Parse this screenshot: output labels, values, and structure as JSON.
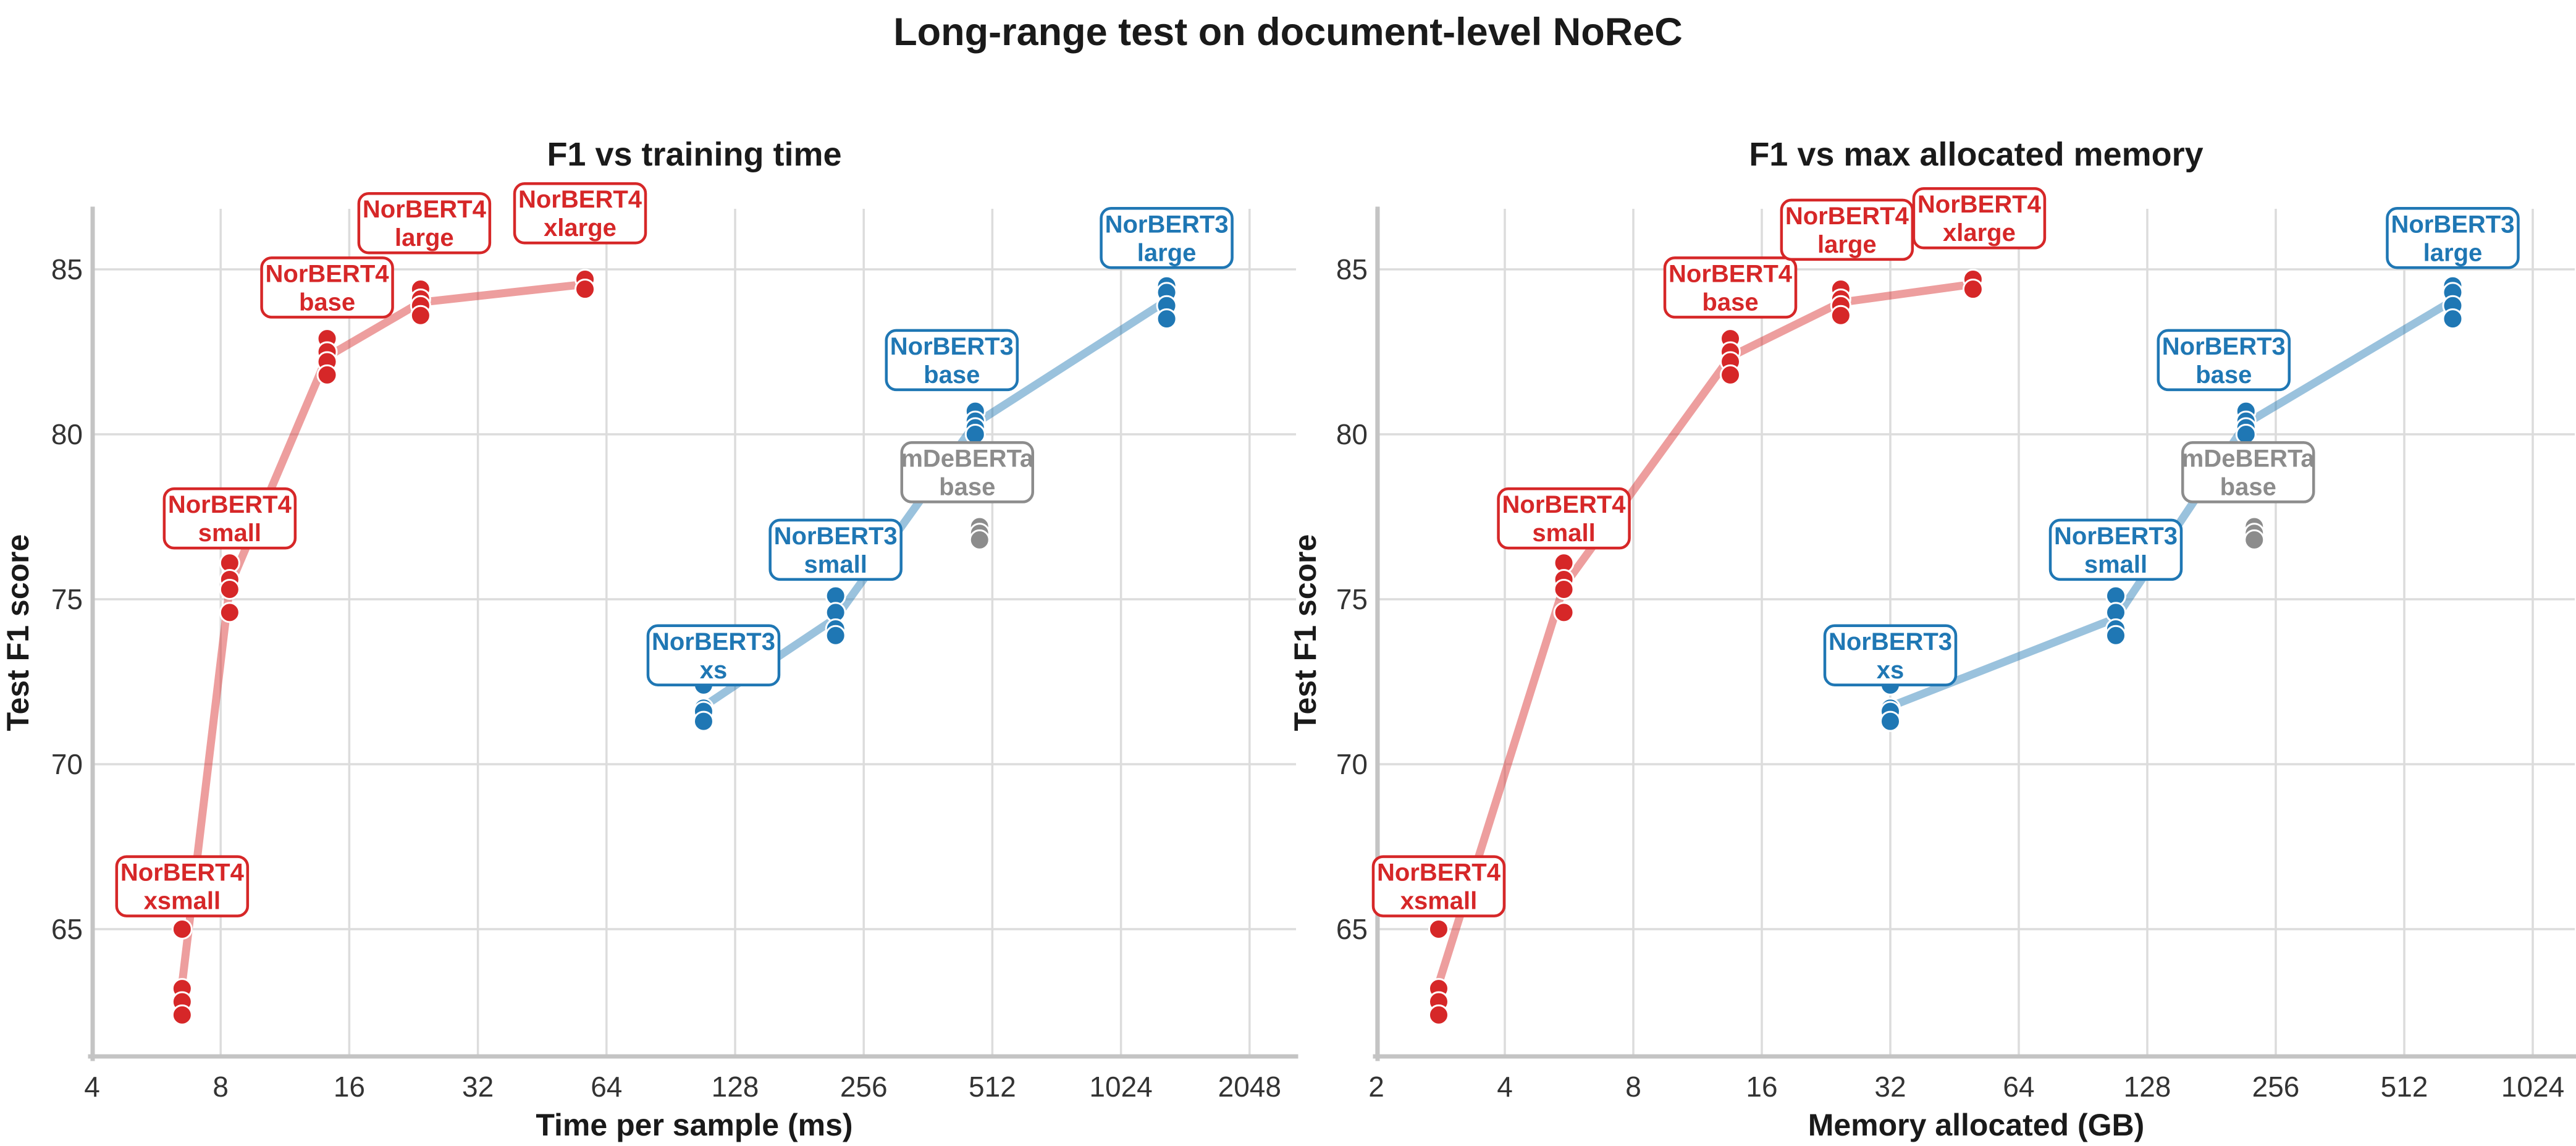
{
  "page": {
    "title": "Long-range test on document-level NoReC"
  },
  "colors": {
    "norbert4": "#d62728",
    "norbert3": "#1f77b4",
    "mdeberta": "#8c8c8c",
    "grid": "#dcdcdc",
    "spine": "#c4c4c4",
    "tick_text": "#333333",
    "title_text": "#1a1a1a"
  },
  "chart_data": [
    {
      "type": "scatter",
      "title": "F1 vs training time",
      "xlabel": "Time per sample (ms)",
      "ylabel": "Test F1 score",
      "xscale": "log2",
      "grid": true,
      "legend": "none",
      "xticks": [
        4,
        8,
        16,
        32,
        64,
        128,
        256,
        512,
        1024,
        2048
      ],
      "yticks": [
        65,
        70,
        75,
        80,
        85
      ],
      "xlim": [
        3.9,
        2300
      ],
      "ylim": [
        61.6,
        86.8
      ],
      "series": [
        {
          "name": "NorBERT4 xsmall",
          "label": [
            "NorBERT4",
            "xsmall"
          ],
          "family": "norbert4",
          "x": 6.5,
          "y": [
            65.0,
            63.2,
            62.8,
            62.4
          ],
          "label_y": 66.3,
          "label_dx": 0
        },
        {
          "name": "NorBERT4 small",
          "label": [
            "NorBERT4",
            "small"
          ],
          "family": "norbert4",
          "x": 8.4,
          "y": [
            76.1,
            75.6,
            75.3,
            74.6
          ],
          "label_y": 77.45,
          "label_dx": 0
        },
        {
          "name": "NorBERT4 base",
          "label": [
            "NorBERT4",
            "base"
          ],
          "family": "norbert4",
          "x": 14.2,
          "y": [
            82.9,
            82.5,
            82.2,
            81.8
          ],
          "label_y": 84.45,
          "label_dx": 0
        },
        {
          "name": "NorBERT4 large",
          "label": [
            "NorBERT4",
            "large"
          ],
          "family": "norbert4",
          "x": 23.5,
          "y": [
            84.4,
            84.1,
            83.9,
            83.6
          ],
          "label_y": 86.4,
          "label_dx": 6
        },
        {
          "name": "NorBERT4 xlarge",
          "label": [
            "NorBERT4",
            "xlarge"
          ],
          "family": "norbert4",
          "x": 57,
          "y": [
            84.7,
            84.4
          ],
          "label_y": 86.7,
          "label_dx": -8
        },
        {
          "name": "NorBERT3 xs",
          "label": [
            "NorBERT3",
            "xs"
          ],
          "family": "norbert3",
          "x": 108,
          "y": [
            72.4,
            71.7,
            71.6,
            71.3
          ],
          "label_y": 73.3,
          "label_dx": 16
        },
        {
          "name": "NorBERT3 small",
          "label": [
            "NorBERT3",
            "small"
          ],
          "family": "norbert3",
          "x": 220,
          "y": [
            75.1,
            74.6,
            74.1,
            73.9
          ],
          "label_y": 76.5,
          "label_dx": 0
        },
        {
          "name": "NorBERT3 base",
          "label": [
            "NorBERT3",
            "base"
          ],
          "family": "norbert3",
          "x": 467,
          "y": [
            80.7,
            80.4,
            80.2,
            80.0
          ],
          "label_y": 82.25,
          "label_dx": -38
        },
        {
          "name": "NorBERT3 large",
          "label": [
            "NorBERT3",
            "large"
          ],
          "family": "norbert3",
          "x": 1310,
          "y": [
            84.5,
            84.3,
            83.9,
            83.5
          ],
          "label_y": 85.95,
          "label_dx": 0
        },
        {
          "name": "mDeBERTa base",
          "label": [
            "mDeBERTa",
            "base"
          ],
          "family": "mdeberta",
          "x": 478,
          "y": [
            77.2,
            77.0,
            76.8
          ],
          "label_y": 78.85,
          "label_dx": -20
        }
      ]
    },
    {
      "type": "scatter",
      "title": "F1 vs max allocated memory",
      "xlabel": "Memory allocated (GB)",
      "ylabel": "Test F1 score",
      "xscale": "log2",
      "grid": true,
      "legend": "none",
      "xticks": [
        2,
        4,
        8,
        16,
        32,
        64,
        128,
        256,
        512,
        1024
      ],
      "yticks": [
        65,
        70,
        75,
        80,
        85
      ],
      "xlim": [
        1.95,
        1150
      ],
      "ylim": [
        61.6,
        86.8
      ],
      "series": [
        {
          "name": "NorBERT4 xsmall",
          "label": [
            "NorBERT4",
            "xsmall"
          ],
          "family": "norbert4",
          "x": 2.8,
          "y": [
            65.0,
            63.2,
            62.8,
            62.4
          ],
          "label_y": 66.3,
          "label_dx": 0
        },
        {
          "name": "NorBERT4 small",
          "label": [
            "NorBERT4",
            "small"
          ],
          "family": "norbert4",
          "x": 5.5,
          "y": [
            76.1,
            75.6,
            75.3,
            74.6
          ],
          "label_y": 77.45,
          "label_dx": 0
        },
        {
          "name": "NorBERT4 base",
          "label": [
            "NorBERT4",
            "base"
          ],
          "family": "norbert4",
          "x": 13.5,
          "y": [
            82.9,
            82.5,
            82.2,
            81.8
          ],
          "label_y": 84.45,
          "label_dx": 0
        },
        {
          "name": "NorBERT4 large",
          "label": [
            "NorBERT4",
            "large"
          ],
          "family": "norbert4",
          "x": 24.5,
          "y": [
            84.4,
            84.1,
            83.9,
            83.6
          ],
          "label_y": 86.2,
          "label_dx": 10
        },
        {
          "name": "NorBERT4 xlarge",
          "label": [
            "NorBERT4",
            "xlarge"
          ],
          "family": "norbert4",
          "x": 50,
          "y": [
            84.7,
            84.4
          ],
          "label_y": 86.55,
          "label_dx": 10
        },
        {
          "name": "NorBERT3 xs",
          "label": [
            "NorBERT3",
            "xs"
          ],
          "family": "norbert3",
          "x": 32,
          "y": [
            72.4,
            71.7,
            71.6,
            71.3
          ],
          "label_y": 73.3,
          "label_dx": 0
        },
        {
          "name": "NorBERT3 small",
          "label": [
            "NorBERT3",
            "small"
          ],
          "family": "norbert3",
          "x": 108,
          "y": [
            75.1,
            74.6,
            74.1,
            73.9
          ],
          "label_y": 76.5,
          "label_dx": 0
        },
        {
          "name": "NorBERT3 base",
          "label": [
            "NorBERT3",
            "base"
          ],
          "family": "norbert3",
          "x": 218,
          "y": [
            80.7,
            80.4,
            80.2,
            80.0
          ],
          "label_y": 82.25,
          "label_dx": -36
        },
        {
          "name": "NorBERT3 large",
          "label": [
            "NorBERT3",
            "large"
          ],
          "family": "norbert3",
          "x": 665,
          "y": [
            84.5,
            84.3,
            83.9,
            83.5
          ],
          "label_y": 85.95,
          "label_dx": 0
        },
        {
          "name": "mDeBERTa base",
          "label": [
            "mDeBERTa",
            "base"
          ],
          "family": "mdeberta",
          "x": 228,
          "y": [
            77.2,
            77.0,
            76.8
          ],
          "label_y": 78.85,
          "label_dx": -10
        }
      ]
    }
  ]
}
